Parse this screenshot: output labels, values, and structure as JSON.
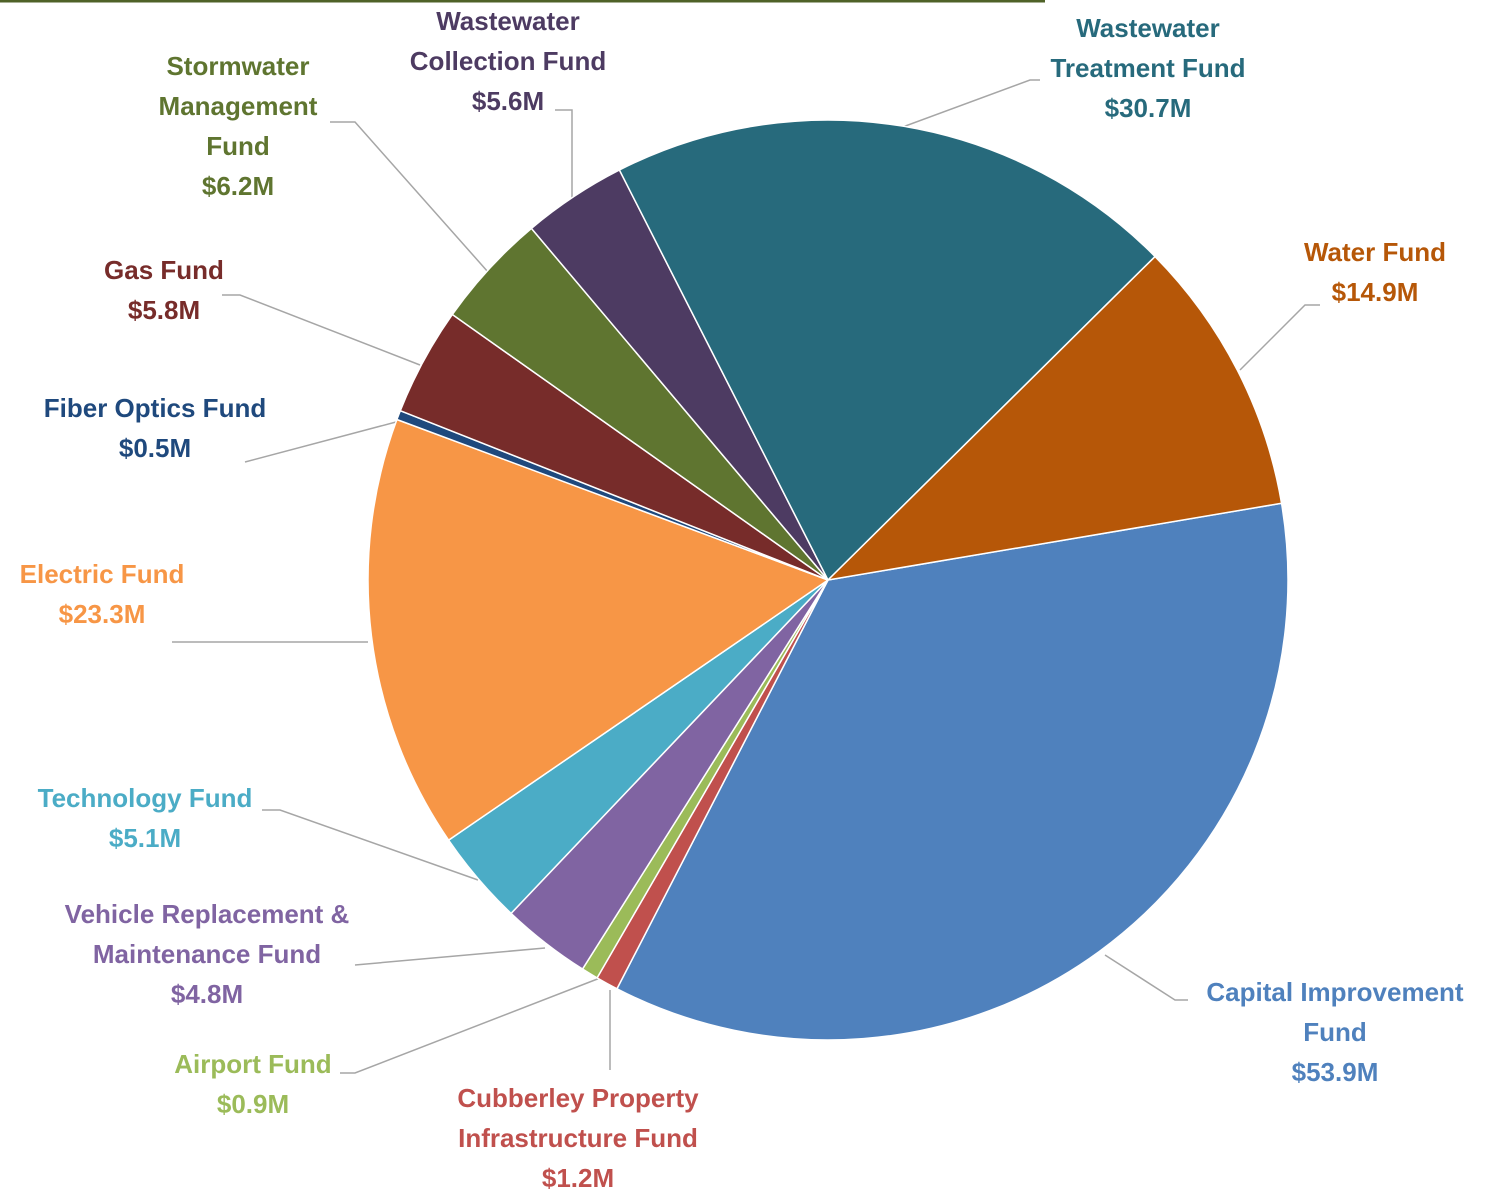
{
  "chart_data": {
    "type": "pie",
    "categories": [
      "Capital Improvement Fund",
      "Cubberley Property Infrastructure Fund",
      "Airport Fund",
      "Vehicle Replacement & Maintenance Fund",
      "Technology Fund",
      "Electric Fund",
      "Fiber Optics Fund",
      "Gas Fund",
      "Stormwater Management Fund",
      "Wastewater Collection Fund",
      "Wastewater Treatment Fund",
      "Water Fund"
    ],
    "values": [
      53.9,
      1.2,
      0.9,
      4.8,
      5.1,
      23.3,
      0.5,
      5.8,
      6.2,
      5.6,
      30.7,
      14.9
    ],
    "value_labels": [
      "$53.9M",
      "$1.2M",
      "$0.9M",
      "$4.8M",
      "$5.1M",
      "$23.3M",
      "$0.5M",
      "$5.8M",
      "$6.2M",
      "$5.6M",
      "$30.7M",
      "$14.9M"
    ],
    "colors": [
      "#4f81bd",
      "#c0504d",
      "#9bbb59",
      "#8064a2",
      "#4bacc6",
      "#f79646",
      "#1f497d",
      "#772c2a",
      "#5f7530",
      "#4d3b62",
      "#276a7c",
      "#b65708"
    ]
  }
}
